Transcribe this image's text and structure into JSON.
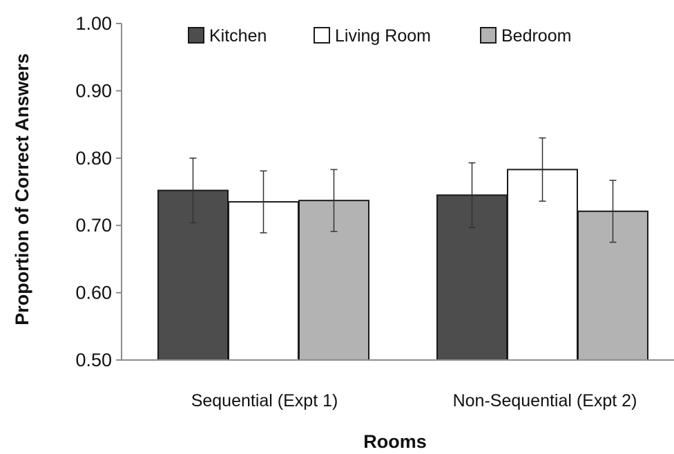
{
  "chart_data": {
    "type": "bar",
    "title": "",
    "xlabel": "Rooms",
    "ylabel": "Proportion of Correct Answers",
    "ylim": [
      0.5,
      1.0
    ],
    "yticks": [
      "0.50",
      "0.60",
      "0.70",
      "0.80",
      "0.90",
      "1.00"
    ],
    "yticks_values": [
      0.5,
      0.6,
      0.7,
      0.8,
      0.9,
      1.0
    ],
    "grid": false,
    "legend_position": "top",
    "categories": [
      "Sequential (Expt 1)",
      "Non-Sequential (Expt 2)"
    ],
    "series": [
      {
        "name": "Kitchen",
        "color": "#4d4d4d",
        "values": [
          0.752,
          0.745
        ],
        "error": [
          0.048,
          0.048
        ]
      },
      {
        "name": "Living Room",
        "color": "#ffffff",
        "values": [
          0.735,
          0.783
        ],
        "error": [
          0.046,
          0.047
        ]
      },
      {
        "name": "Bedroom",
        "color": "#b3b3b3",
        "values": [
          0.737,
          0.721
        ],
        "error": [
          0.046,
          0.046
        ]
      }
    ]
  }
}
